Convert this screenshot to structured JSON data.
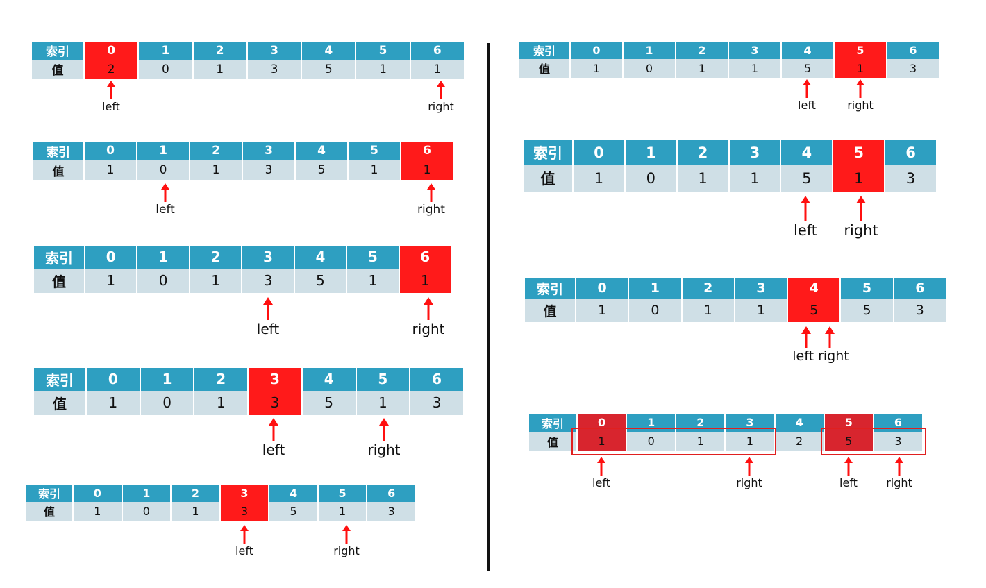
{
  "labels": {
    "index": "索引",
    "value": "值",
    "left": "left",
    "right": "right",
    "left_right": "left right"
  },
  "colors": {
    "header": "#2e9fc1",
    "cell": "#cfdfe6",
    "highlight": "#ff1a1a",
    "highlight_dark": "#d8252e",
    "arrow": "#ff1010"
  },
  "indices": [
    "0",
    "1",
    "2",
    "3",
    "4",
    "5",
    "6"
  ],
  "steps": [
    {
      "values": [
        "2",
        "0",
        "1",
        "3",
        "5",
        "1",
        "1"
      ],
      "highlight": [
        0
      ]
    },
    {
      "values": [
        "1",
        "0",
        "1",
        "3",
        "5",
        "1",
        "1"
      ],
      "highlight": [
        6
      ]
    },
    {
      "values": [
        "1",
        "0",
        "1",
        "3",
        "5",
        "1",
        "1"
      ],
      "highlight": [
        6
      ]
    },
    {
      "values": [
        "1",
        "0",
        "1",
        "3",
        "5",
        "1",
        "3"
      ],
      "highlight": [
        3
      ]
    },
    {
      "values": [
        "1",
        "0",
        "1",
        "3",
        "5",
        "1",
        "3"
      ],
      "highlight": [
        3
      ]
    },
    {
      "values": [
        "1",
        "0",
        "1",
        "1",
        "5",
        "1",
        "3"
      ],
      "highlight": [
        5
      ]
    },
    {
      "values": [
        "1",
        "0",
        "1",
        "1",
        "5",
        "1",
        "3"
      ],
      "highlight": [
        5
      ]
    },
    {
      "values": [
        "1",
        "0",
        "1",
        "1",
        "5",
        "5",
        "3"
      ],
      "highlight": [
        4
      ]
    },
    {
      "values": [
        "1",
        "0",
        "1",
        "1",
        "2",
        "5",
        "3"
      ],
      "highlight": [
        0,
        5
      ]
    }
  ]
}
